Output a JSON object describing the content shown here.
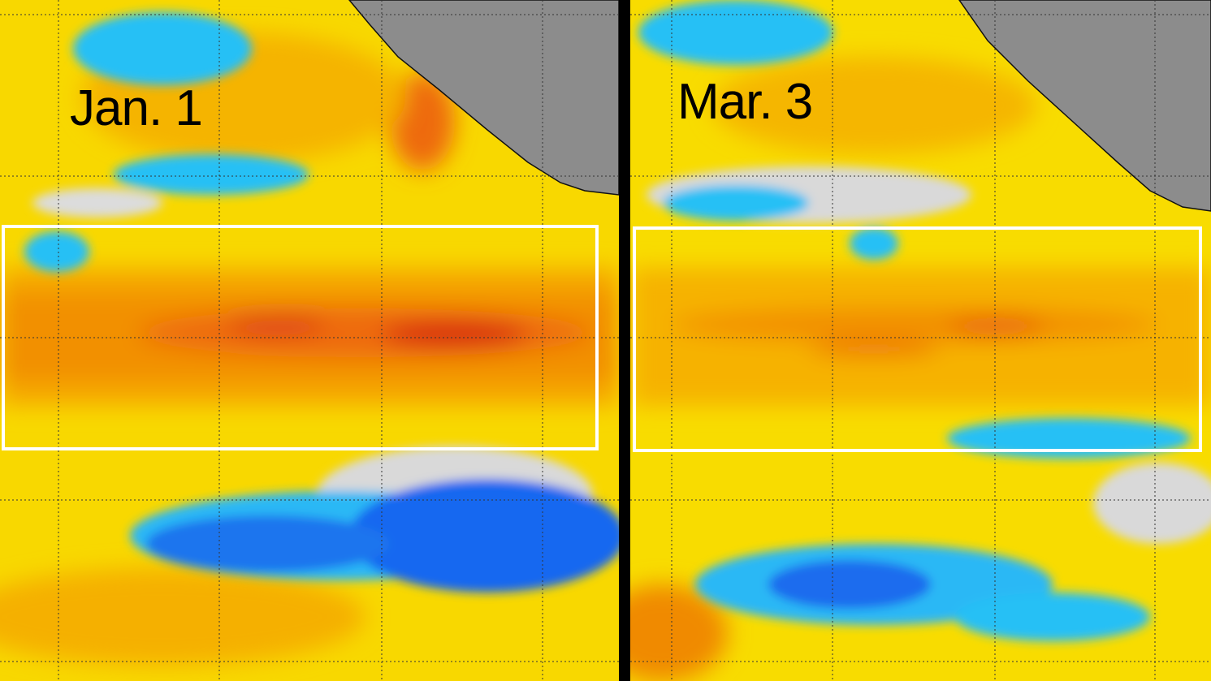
{
  "panels": [
    {
      "date_label": "Jan. 1"
    },
    {
      "date_label": "Mar. 3"
    }
  ],
  "colors": {
    "warm_yellow": "#f7e000",
    "warm_orange": "#f6a400",
    "hot_red": "#e8401a",
    "cool_light_blue": "#25bff5",
    "cool_blue": "#1060f0",
    "neutral_gray": "#d9d9d9",
    "land": "#8c8c8c",
    "highlight_box": "#ffffff"
  }
}
